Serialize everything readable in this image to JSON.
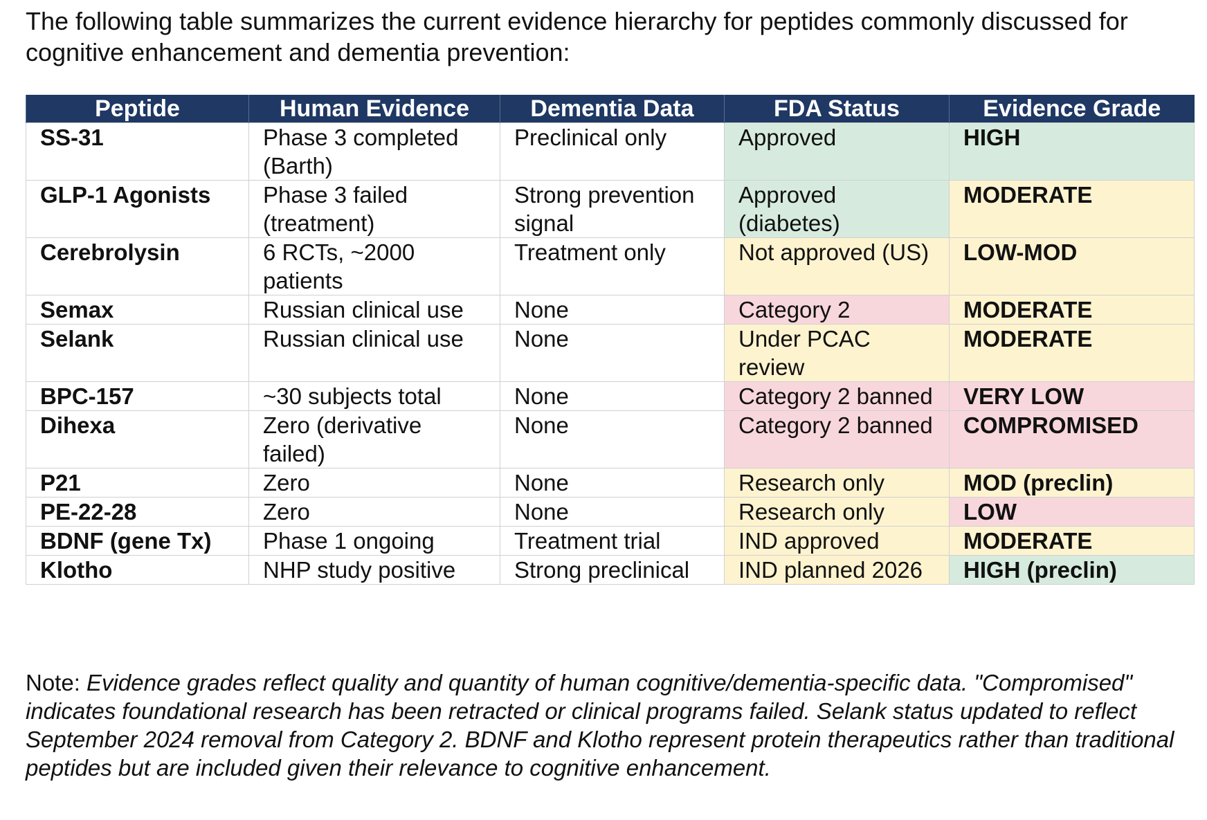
{
  "intro": "The following table summarizes the current evidence hierarchy for peptides commonly discussed for cognitive enhancement and dementia prevention:",
  "table": {
    "headers": [
      "Peptide",
      "Human Evidence",
      "Dementia Data",
      "FDA Status",
      "Evidence Grade"
    ],
    "rows": [
      {
        "peptide": "SS-31",
        "human_evidence": "Phase 3 completed (Barth)",
        "dementia_data": "Preclinical only",
        "fda_status": "Approved",
        "fda_color": "#d6ebdd",
        "evidence_grade": "HIGH",
        "grade_color": "#d6ebdd"
      },
      {
        "peptide": "GLP-1 Agonists",
        "human_evidence": "Phase 3 failed (treatment)",
        "dementia_data": "Strong prevention signal",
        "fda_status": "Approved (diabetes)",
        "fda_color": "#d6ebdd",
        "evidence_grade": "MODERATE",
        "grade_color": "#fdf3cf"
      },
      {
        "peptide": "Cerebrolysin",
        "human_evidence": "6 RCTs, ~2000 patients",
        "dementia_data": "Treatment only",
        "fda_status": "Not approved (US)",
        "fda_color": "#fdf3cf",
        "evidence_grade": "LOW-MOD",
        "grade_color": "#fdf3cf"
      },
      {
        "peptide": "Semax",
        "human_evidence": "Russian clinical use",
        "dementia_data": "None",
        "fda_status": "Category 2",
        "fda_color": "#f8d7dc",
        "evidence_grade": "MODERATE",
        "grade_color": "#fdf3cf"
      },
      {
        "peptide": "Selank",
        "human_evidence": "Russian clinical use",
        "dementia_data": "None",
        "fda_status": "Under PCAC review",
        "fda_color": "#fdf3cf",
        "evidence_grade": "MODERATE",
        "grade_color": "#fdf3cf"
      },
      {
        "peptide": "BPC-157",
        "human_evidence": "~30 subjects total",
        "dementia_data": "None",
        "fda_status": "Category 2 banned",
        "fda_color": "#f8d7dc",
        "evidence_grade": "VERY LOW",
        "grade_color": "#f8d7dc"
      },
      {
        "peptide": "Dihexa",
        "human_evidence": "Zero (derivative failed)",
        "dementia_data": "None",
        "fda_status": "Category 2 banned",
        "fda_color": "#f8d7dc",
        "evidence_grade": "COMPROMISED",
        "grade_color": "#f8d7dc"
      },
      {
        "peptide": "P21",
        "human_evidence": "Zero",
        "dementia_data": "None",
        "fda_status": "Research only",
        "fda_color": "#fdf3cf",
        "evidence_grade": "MOD (preclin)",
        "grade_color": "#fdf3cf"
      },
      {
        "peptide": "PE-22-28",
        "human_evidence": "Zero",
        "dementia_data": "None",
        "fda_status": "Research only",
        "fda_color": "#fdf3cf",
        "evidence_grade": "LOW",
        "grade_color": "#f8d7dc"
      },
      {
        "peptide": "BDNF (gene Tx)",
        "human_evidence": "Phase 1 ongoing",
        "dementia_data": "Treatment trial",
        "fda_status": "IND approved",
        "fda_color": "#fdf3cf",
        "evidence_grade": "MODERATE",
        "grade_color": "#fdf3cf"
      },
      {
        "peptide": "Klotho",
        "human_evidence": "NHP study positive",
        "dementia_data": "Strong preclinical",
        "fda_status": "IND planned 2026",
        "fda_color": "#fdf3cf",
        "evidence_grade": "HIGH (preclin)",
        "grade_color": "#d6ebdd"
      }
    ]
  },
  "note": {
    "label": "Note:",
    "text": "Evidence grades reflect quality and quantity of human cognitive/dementia-specific data. \"Compromised\" indicates foundational research has been retracted or clinical programs failed. Selank status updated to reflect September 2024 removal from Category 2. BDNF and Klotho represent protein therapeutics rather than traditional peptides but are included given their relevance to cognitive enhancement."
  }
}
